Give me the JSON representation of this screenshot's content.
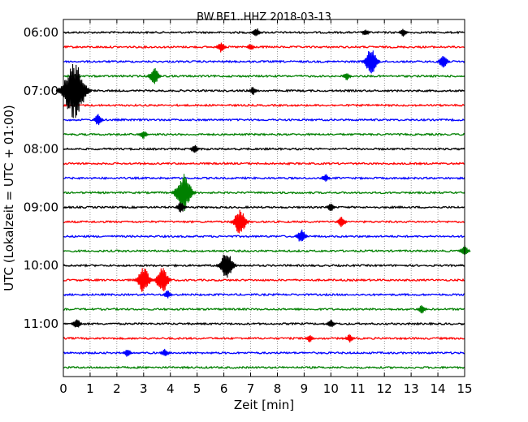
{
  "chart_data": {
    "type": "line",
    "title": "BW.BE1..HHZ 2018-03-13",
    "xlabel": "Zeit  [min]",
    "ylabel": "UTC (Lokalzeit = UTC + 01:00)",
    "xlim": [
      0,
      15
    ],
    "x_ticks": [
      "0",
      "1",
      "2",
      "3",
      "4",
      "5",
      "6",
      "7",
      "8",
      "9",
      "10",
      "11",
      "12",
      "13",
      "14",
      "15"
    ],
    "y_ticks": [
      "06:00",
      "07:00",
      "08:00",
      "09:00",
      "10:00",
      "11:00"
    ],
    "y_tick_rows": [
      0,
      4,
      8,
      12,
      16,
      20
    ],
    "grid": true,
    "row_minutes": 15,
    "row_colors": [
      "#000000",
      "#ff0000",
      "#0000ff",
      "#008000"
    ],
    "row_start_times": [
      "06:00",
      "06:15",
      "06:30",
      "06:45",
      "07:00",
      "07:15",
      "07:30",
      "07:45",
      "08:00",
      "08:15",
      "08:30",
      "08:45",
      "09:00",
      "09:15",
      "09:30",
      "09:45",
      "10:00",
      "10:15",
      "10:30",
      "10:45",
      "11:00",
      "11:15",
      "11:30",
      "11:45"
    ],
    "events": [
      {
        "row": 0,
        "minute": 7.2,
        "amp": 0.35
      },
      {
        "row": 0,
        "minute": 11.3,
        "amp": 0.25
      },
      {
        "row": 0,
        "minute": 12.7,
        "amp": 0.3
      },
      {
        "row": 1,
        "minute": 5.9,
        "amp": 0.4
      },
      {
        "row": 1,
        "minute": 7.0,
        "amp": 0.25
      },
      {
        "row": 2,
        "minute": 11.5,
        "amp": 0.9
      },
      {
        "row": 2,
        "minute": 14.2,
        "amp": 0.5
      },
      {
        "row": 3,
        "minute": 3.4,
        "amp": 0.6
      },
      {
        "row": 3,
        "minute": 10.6,
        "amp": 0.3
      },
      {
        "row": 4,
        "minute": 0.4,
        "amp": 2.0
      },
      {
        "row": 4,
        "minute": 7.1,
        "amp": 0.3
      },
      {
        "row": 6,
        "minute": 1.3,
        "amp": 0.4
      },
      {
        "row": 7,
        "minute": 3.0,
        "amp": 0.3
      },
      {
        "row": 8,
        "minute": 4.9,
        "amp": 0.3
      },
      {
        "row": 10,
        "minute": 9.8,
        "amp": 0.3
      },
      {
        "row": 11,
        "minute": 4.5,
        "amp": 1.3
      },
      {
        "row": 12,
        "minute": 4.4,
        "amp": 0.4
      },
      {
        "row": 12,
        "minute": 10.0,
        "amp": 0.3
      },
      {
        "row": 13,
        "minute": 6.6,
        "amp": 0.9
      },
      {
        "row": 13,
        "minute": 10.4,
        "amp": 0.4
      },
      {
        "row": 14,
        "minute": 8.9,
        "amp": 0.5
      },
      {
        "row": 15,
        "minute": 15.0,
        "amp": 0.4
      },
      {
        "row": 16,
        "minute": 6.1,
        "amp": 1.0
      },
      {
        "row": 17,
        "minute": 3.0,
        "amp": 0.9
      },
      {
        "row": 17,
        "minute": 3.7,
        "amp": 0.9
      },
      {
        "row": 18,
        "minute": 3.9,
        "amp": 0.3
      },
      {
        "row": 19,
        "minute": 13.4,
        "amp": 0.3
      },
      {
        "row": 20,
        "minute": 0.5,
        "amp": 0.4
      },
      {
        "row": 20,
        "minute": 10.0,
        "amp": 0.3
      },
      {
        "row": 21,
        "minute": 9.2,
        "amp": 0.3
      },
      {
        "row": 21,
        "minute": 10.7,
        "amp": 0.3
      },
      {
        "row": 22,
        "minute": 2.4,
        "amp": 0.3
      },
      {
        "row": 22,
        "minute": 3.8,
        "amp": 0.3
      }
    ]
  }
}
